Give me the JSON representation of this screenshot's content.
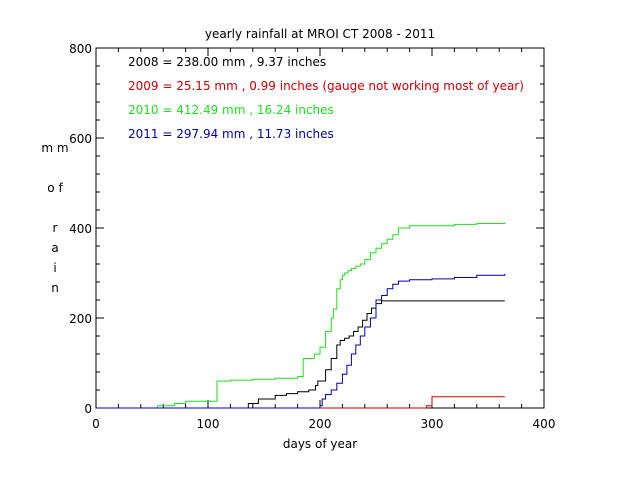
{
  "chart_data": {
    "type": "line",
    "title": "yearly rainfall at MROI CT 2008 - 2011",
    "xlabel": "days of year",
    "ylabel": "mm of rain",
    "xlim": [
      0,
      400
    ],
    "ylim": [
      0,
      800
    ],
    "xticks": [
      "0",
      "100",
      "200",
      "300",
      "400"
    ],
    "yticks": [
      "0",
      "200",
      "400",
      "600",
      "800"
    ],
    "grid": false,
    "colors": {
      "axes": "#000000",
      "background": "#ffffff"
    },
    "annotations": [
      {
        "text": "2008 = 238.00 mm , 9.37 inches",
        "color": "#000000"
      },
      {
        "text": "2009 = 25.15 mm , 0.99 inches (gauge not working most of year)",
        "color": "#cc0000"
      },
      {
        "text": "2010 = 412.49 mm , 16.24 inches",
        "color": "#22dd22"
      },
      {
        "text": "2011 = 297.94 mm , 11.73 inches",
        "color": "#0000aa"
      }
    ],
    "series": [
      {
        "name": "2008",
        "color": "#000000",
        "x": [
          1,
          130,
          136,
          145,
          160,
          170,
          180,
          190,
          196,
          198,
          205,
          210,
          215,
          218,
          222,
          226,
          230,
          234,
          238,
          242,
          246,
          250,
          255,
          260,
          280,
          300,
          320,
          340,
          365
        ],
        "y": [
          0,
          0,
          10,
          20,
          28,
          32,
          36,
          40,
          50,
          60,
          85,
          110,
          140,
          150,
          155,
          160,
          170,
          180,
          195,
          210,
          222,
          232,
          238,
          238,
          238,
          238,
          238,
          238,
          238
        ]
      },
      {
        "name": "2009",
        "color": "#cc0000",
        "x": [
          1,
          100,
          200,
          250,
          280,
          295,
          300,
          330,
          365
        ],
        "y": [
          0,
          0,
          0,
          0,
          0,
          5,
          25,
          25,
          25
        ]
      },
      {
        "name": "2010",
        "color": "#22dd22",
        "x": [
          1,
          40,
          55,
          70,
          80,
          100,
          108,
          120,
          140,
          160,
          180,
          185,
          195,
          200,
          205,
          210,
          212,
          215,
          218,
          220,
          222,
          225,
          228,
          232,
          236,
          240,
          245,
          250,
          255,
          260,
          265,
          270,
          280,
          300,
          320,
          340,
          365
        ],
        "y": [
          0,
          0,
          5,
          10,
          15,
          15,
          60,
          62,
          64,
          66,
          70,
          110,
          120,
          135,
          170,
          200,
          220,
          265,
          285,
          295,
          300,
          305,
          310,
          315,
          320,
          330,
          345,
          355,
          365,
          375,
          385,
          400,
          405,
          405,
          408,
          410,
          412
        ]
      },
      {
        "name": "2011",
        "color": "#0000aa",
        "x": [
          1,
          80,
          190,
          200,
          202,
          205,
          210,
          215,
          220,
          224,
          228,
          232,
          236,
          240,
          245,
          250,
          255,
          260,
          265,
          270,
          280,
          290,
          300,
          320,
          340,
          365
        ],
        "y": [
          0,
          0,
          0,
          5,
          20,
          30,
          40,
          55,
          75,
          95,
          120,
          140,
          160,
          180,
          200,
          240,
          250,
          265,
          275,
          282,
          285,
          285,
          287,
          290,
          295,
          298
        ]
      }
    ]
  }
}
